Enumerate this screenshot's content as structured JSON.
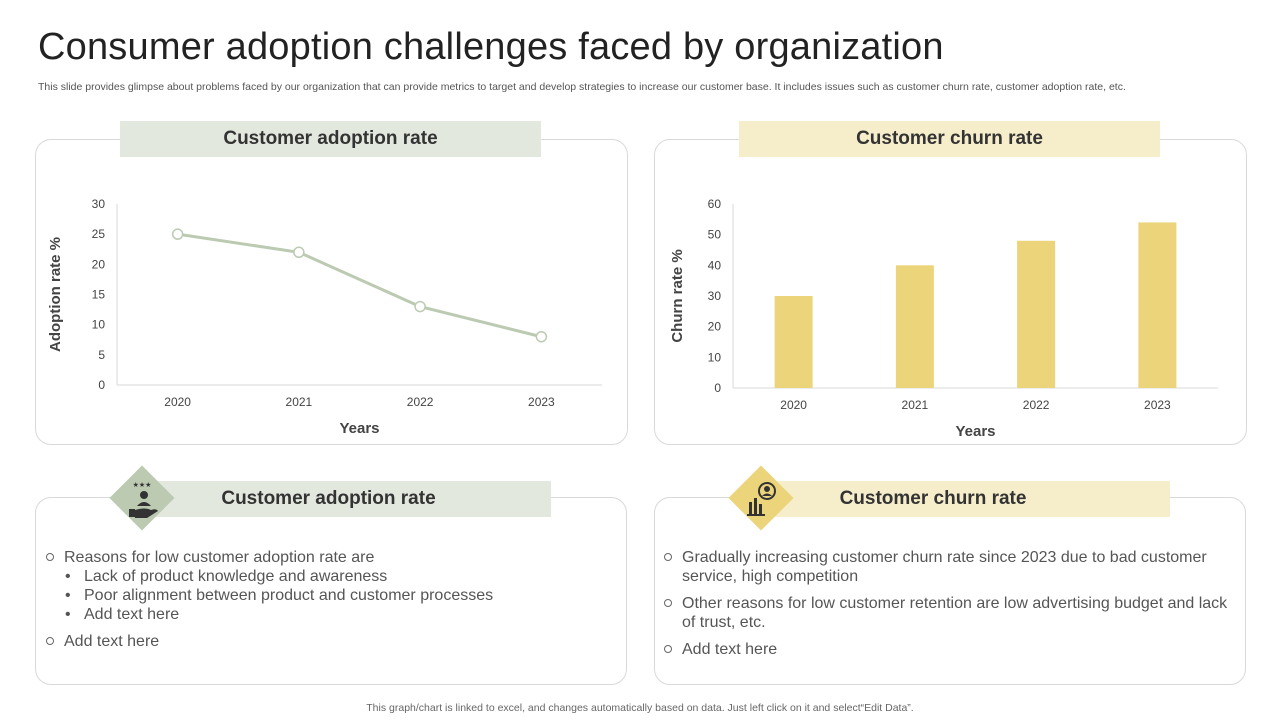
{
  "title": "Consumer adoption challenges faced by organization",
  "subtitle": "This slide provides glimpse about problems faced by our organization that can provide metrics to target and develop strategies to increase our customer base. It includes issues such as customer churn rate, customer adoption rate, etc.",
  "colors": {
    "adoption_accent": "#bccab2",
    "churn_accent": "#ecd47b",
    "adoption_head": "#e3e8df",
    "churn_head": "#f6eecb"
  },
  "top_left": {
    "heading": "Customer adoption rate"
  },
  "top_right": {
    "heading": "Customer churn rate"
  },
  "bottom_left": {
    "heading": "Customer adoption rate",
    "icon": "hand-with-person-stars-icon",
    "bullet1": "Reasons for low customer adoption rate are",
    "sub1": "Lack of product knowledge and awareness",
    "sub2": "Poor alignment between product and customer processes",
    "sub3": "Add text here",
    "bullet2": "Add text here",
    "sub_glyph": "•"
  },
  "bottom_right": {
    "heading": "Customer churn rate",
    "icon": "person-chart-icon",
    "bullet1": "Gradually increasing customer churn rate since 2023 due to bad customer service, high competition",
    "bullet2": "Other reasons for low customer retention are low advertising budget and lack of trust, etc.",
    "bullet3": "Add text here"
  },
  "footer": "This graph/chart is linked to excel, and changes automatically based on data. Just left click on it and select“Edit Data”.",
  "chart_data": [
    {
      "type": "line",
      "title": "Customer adoption rate",
      "categories": [
        "2020",
        "2021",
        "2022",
        "2023"
      ],
      "values": [
        25,
        22,
        13,
        8
      ],
      "xlabel": "Years",
      "ylabel": "Adoption rate %",
      "ylim": [
        0,
        30
      ],
      "yticks": [
        0,
        5,
        10,
        15,
        20,
        25,
        30
      ]
    },
    {
      "type": "bar",
      "title": "Customer churn rate",
      "categories": [
        "2020",
        "2021",
        "2022",
        "2023"
      ],
      "values": [
        30,
        40,
        48,
        54
      ],
      "xlabel": "Years",
      "ylabel": "Churn rate %",
      "ylim": [
        0,
        60
      ],
      "yticks": [
        0,
        10,
        20,
        30,
        40,
        50,
        60
      ]
    }
  ]
}
